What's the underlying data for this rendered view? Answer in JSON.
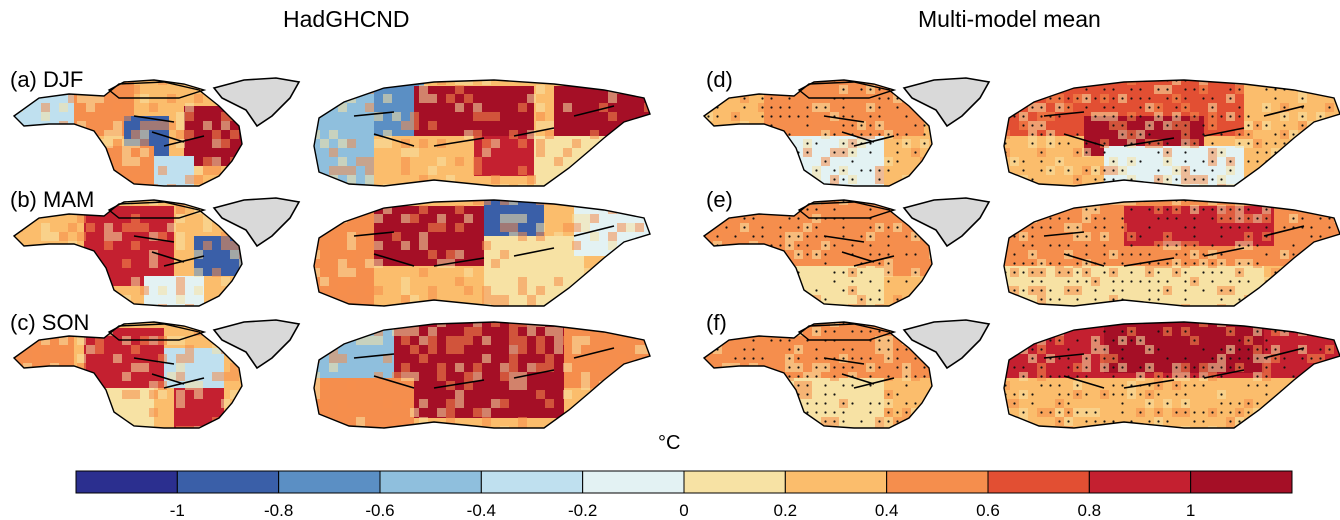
{
  "titles": {
    "left": "HadGHCND",
    "right": "Multi-model mean"
  },
  "panels": [
    {
      "label": "(a) DJF",
      "season": "DJF",
      "source": "HadGHCND",
      "stippling": false
    },
    {
      "label": "(b) MAM",
      "season": "MAM",
      "source": "HadGHCND",
      "stippling": false
    },
    {
      "label": "(c) SON",
      "season": "SON",
      "source": "HadGHCND",
      "stippling": false
    },
    {
      "label": "(d)",
      "season": "DJF",
      "source": "Multi-model mean",
      "stippling": true
    },
    {
      "label": "(e)",
      "season": "MAM",
      "source": "Multi-model mean",
      "stippling": true
    },
    {
      "label": "(f)",
      "season": "SON",
      "source": "Multi-model mean",
      "stippling": true
    }
  ],
  "colorbar": {
    "unit": "°C",
    "tick_labels": [
      "-1",
      "-0.8",
      "-0.6",
      "-0.4",
      "-0.2",
      "0",
      "0.2",
      "0.4",
      "0.6",
      "0.8",
      "1"
    ],
    "colors": [
      "#2b2f8f",
      "#3a5fa8",
      "#5b8fc4",
      "#8fbfdd",
      "#bfe0ef",
      "#e3f2f3",
      "#f7e2a4",
      "#fbbd6c",
      "#f58e4d",
      "#e24f33",
      "#c42030",
      "#a50f26"
    ]
  },
  "chart_data": {
    "type": "heatmap",
    "variable": "gridded trend over Northern Hemisphere land, North America and Eurasia",
    "columns": [
      "HadGHCND",
      "Multi-model mean"
    ],
    "rows": [
      "DJF",
      "MAM",
      "SON"
    ],
    "color_scale": {
      "min": -1.2,
      "max": 1.2,
      "step": 0.2,
      "extend": "both",
      "unit": "°C"
    },
    "panels": [
      {
        "id": "a",
        "season": "DJF",
        "dataset": "HadGHCND",
        "dominant": "warming over Eurasia and eastern Canada; cooling over central North America and Europe"
      },
      {
        "id": "b",
        "season": "MAM",
        "dataset": "HadGHCND",
        "dominant": "strong warming over Canada and western Russia; cooling over NE North America and central Siberia"
      },
      {
        "id": "c",
        "season": "SON",
        "dataset": "HadGHCND",
        "dominant": "strong warming over central and eastern Eurasia; cooling over Scandinavia"
      },
      {
        "id": "d",
        "season": "DJF",
        "dataset": "Multi-model mean",
        "dominant": "moderate warming, strongest over northern Eurasia; stippled where significant"
      },
      {
        "id": "e",
        "season": "MAM",
        "dataset": "Multi-model mean",
        "dominant": "widespread moderate warming, widely stippled"
      },
      {
        "id": "f",
        "season": "SON",
        "dataset": "Multi-model mean",
        "dominant": "strongest warming over northern Siberia, widely stippled"
      }
    ]
  }
}
